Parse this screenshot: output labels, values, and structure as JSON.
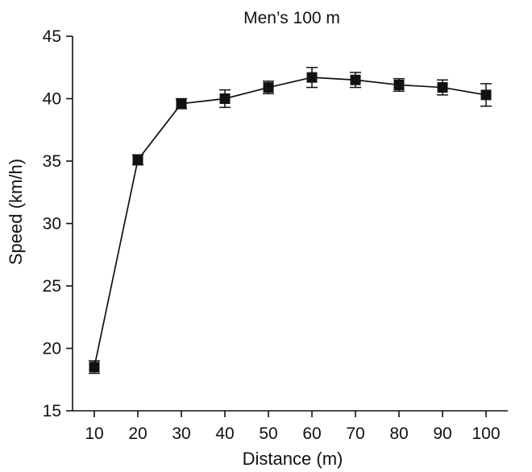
{
  "chart_data": {
    "type": "line",
    "title": "Men’s 100 m",
    "xlabel": "Distance (m)",
    "ylabel": "Speed (km/h)",
    "x": [
      10,
      20,
      30,
      40,
      50,
      60,
      70,
      80,
      90,
      100
    ],
    "xlim": [
      5,
      105
    ],
    "ylim": [
      15,
      45
    ],
    "xticks": [
      "10",
      "20",
      "30",
      "40",
      "50",
      "60",
      "70",
      "80",
      "90",
      "100"
    ],
    "yticks": [
      "15",
      "20",
      "25",
      "30",
      "35",
      "40",
      "45"
    ],
    "grid": false,
    "legend": "none",
    "series": [
      {
        "name": "Men’s 100 m",
        "values": [
          18.5,
          35.1,
          39.6,
          40.0,
          40.9,
          41.7,
          41.5,
          41.1,
          40.9,
          40.3
        ],
        "error": [
          0.5,
          0.4,
          0.4,
          0.7,
          0.5,
          0.8,
          0.6,
          0.5,
          0.6,
          0.9
        ],
        "marker": "square",
        "color": "#111111"
      }
    ]
  }
}
